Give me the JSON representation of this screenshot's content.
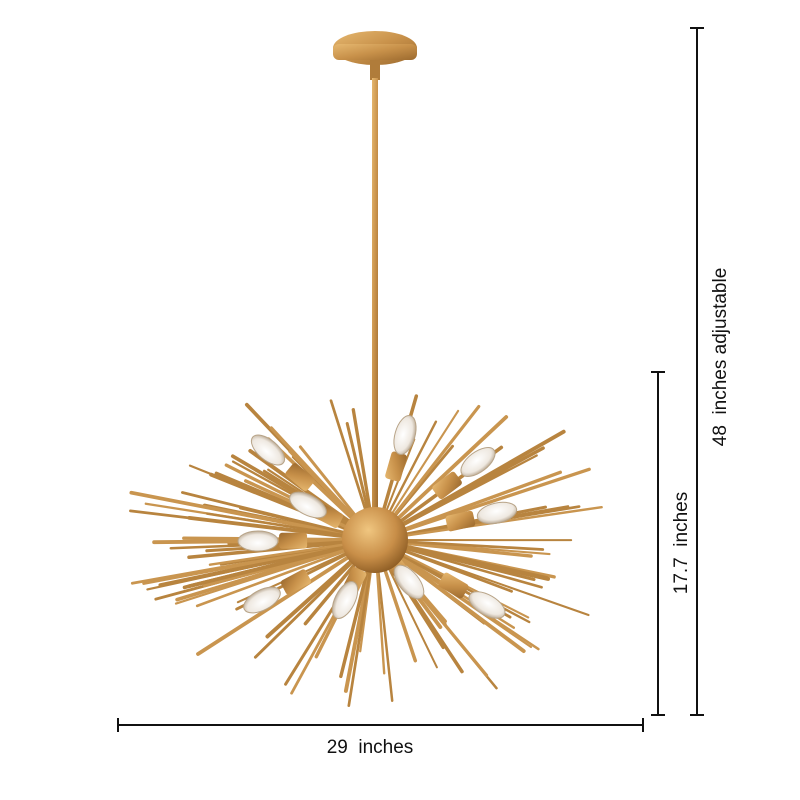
{
  "dimensions": {
    "width": "29  inches",
    "height": "17.7  inches",
    "overall_height": "48  inches adjustable"
  }
}
